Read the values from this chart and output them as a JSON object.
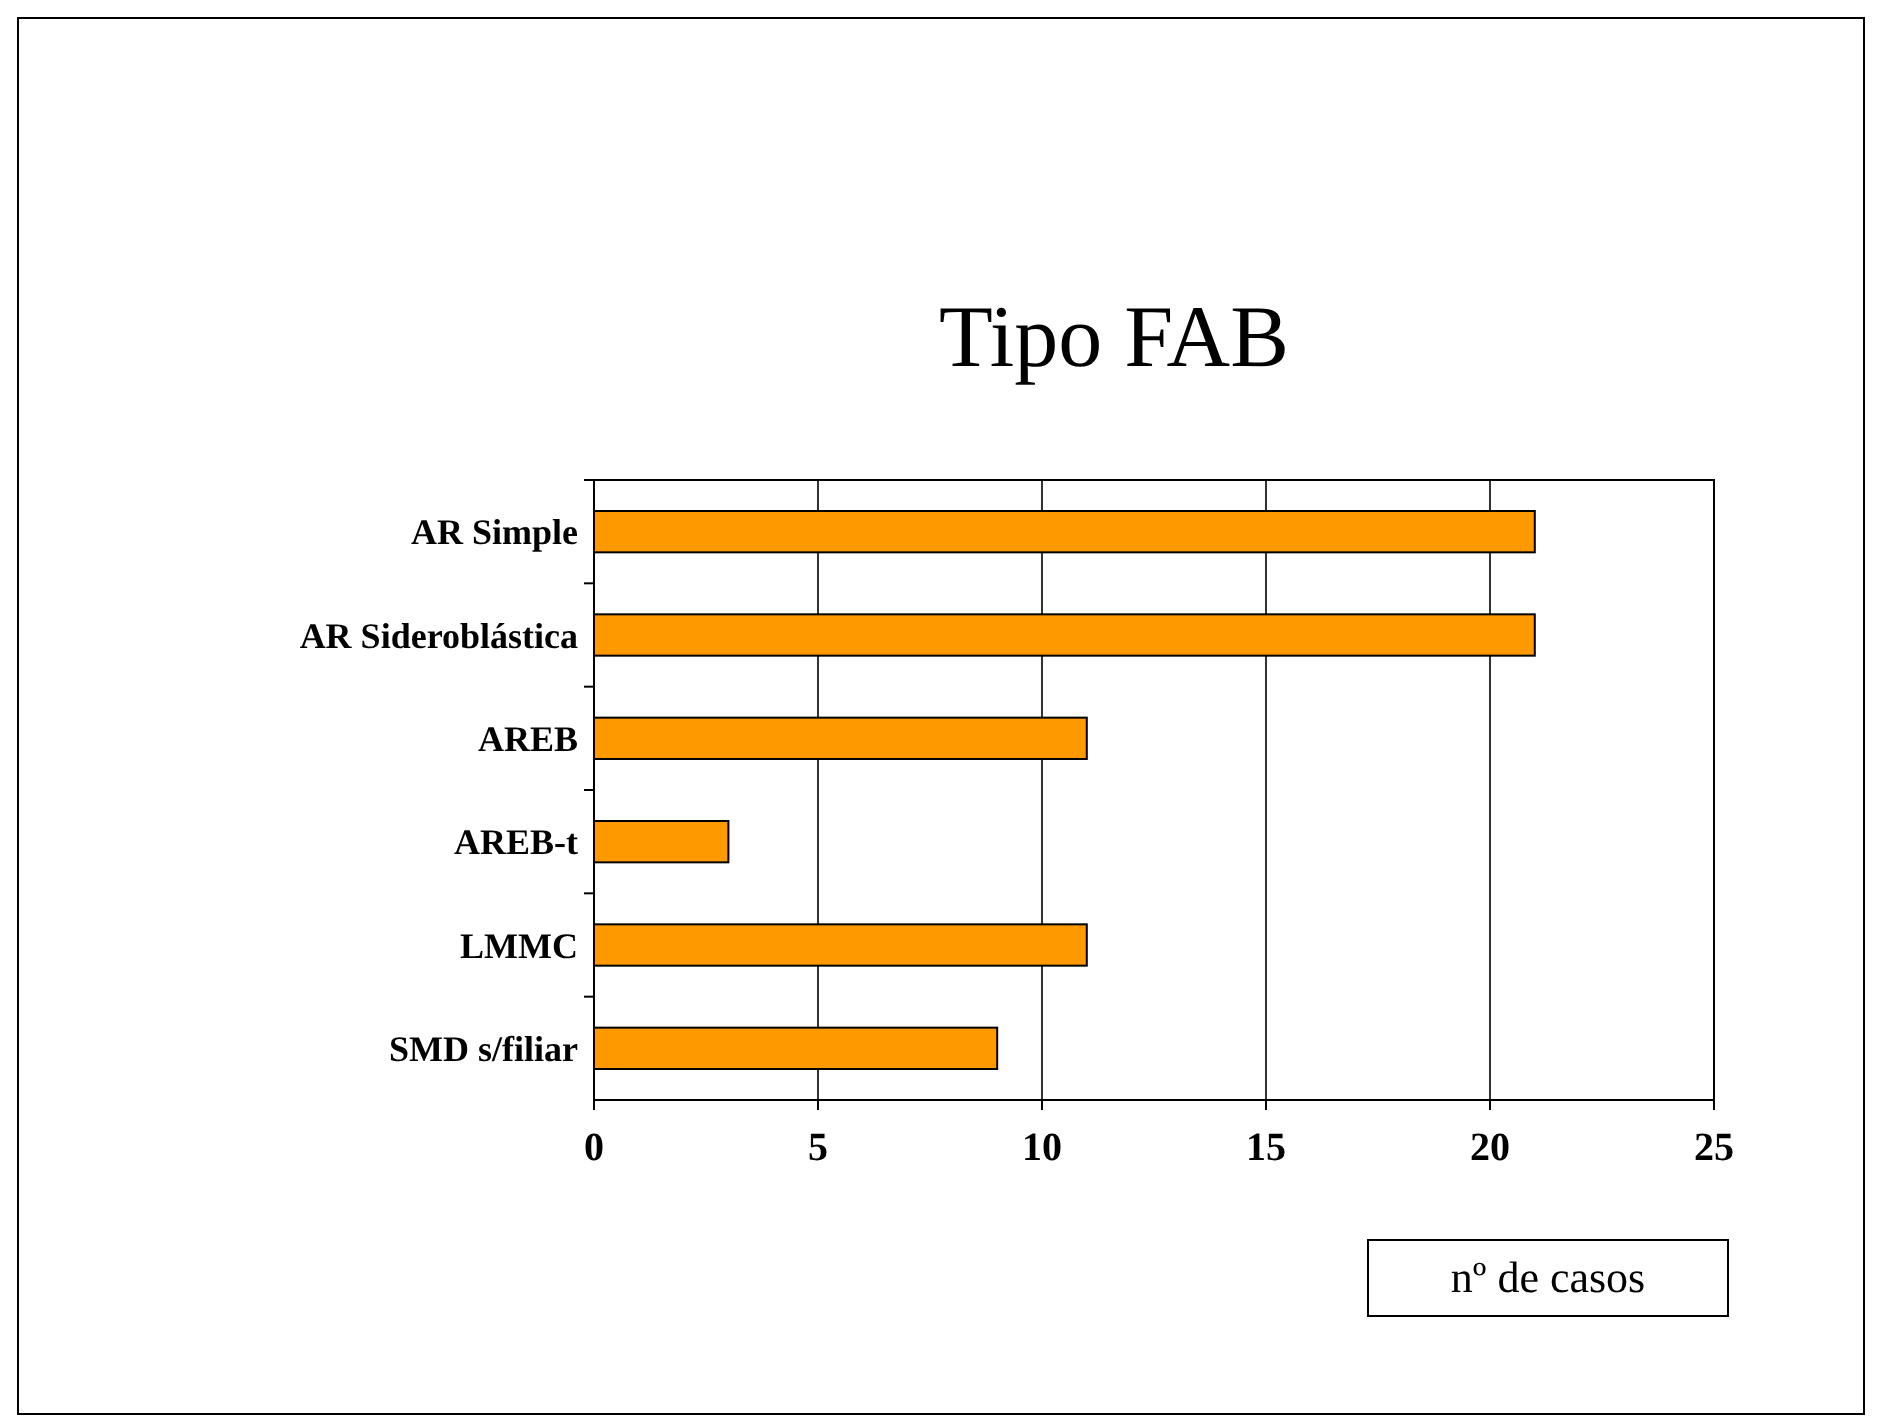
{
  "chart_data": {
    "type": "bar",
    "title": "Tipo FAB",
    "xlabel": "nº de casos",
    "orientation": "horizontal",
    "categories": [
      "AR Simple",
      "AR Sideroblástica",
      "AREB",
      "AREB-t",
      "LMMC",
      "SMD s/filiar"
    ],
    "values": [
      21,
      21,
      11,
      3,
      11,
      9
    ],
    "color": "#ff9900",
    "xlim": [
      0,
      25
    ],
    "xticks": [
      0,
      5,
      10,
      15,
      20,
      25
    ],
    "grid": "x"
  }
}
